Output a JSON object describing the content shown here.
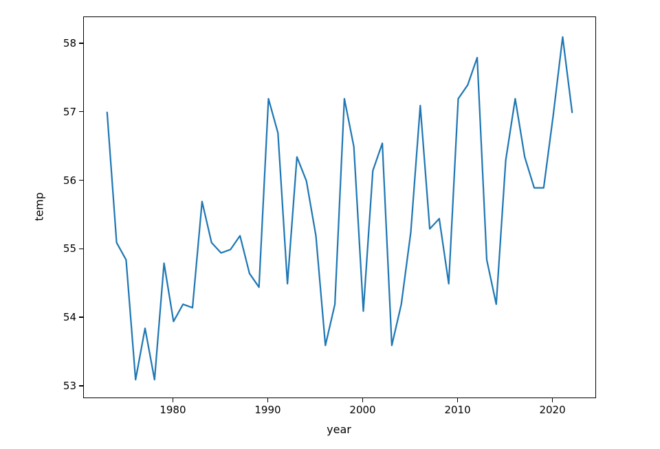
{
  "figure": {
    "background": "#ffffff",
    "spine_color": "#000000",
    "tick_color": "#000000"
  },
  "chart_data": {
    "type": "line",
    "title": "",
    "xlabel": "year",
    "ylabel": "temp",
    "grid": false,
    "legend": null,
    "line_color": "#1f77b4",
    "line_width": 2.25,
    "xlim": [
      1970.55,
      2024.45
    ],
    "ylim": [
      52.84,
      58.39
    ],
    "xticks": [
      1980,
      1990,
      2000,
      2010,
      2020
    ],
    "yticks": [
      53,
      54,
      55,
      56,
      57,
      58
    ],
    "x": [
      1973,
      1974,
      1975,
      1976,
      1977,
      1978,
      1979,
      1980,
      1981,
      1982,
      1983,
      1984,
      1985,
      1986,
      1987,
      1988,
      1989,
      1990,
      1991,
      1992,
      1993,
      1994,
      1995,
      1996,
      1997,
      1998,
      1999,
      2000,
      2001,
      2002,
      2003,
      2004,
      2005,
      2006,
      2007,
      2008,
      2009,
      2010,
      2011,
      2012,
      2013,
      2014,
      2015,
      2016,
      2017,
      2018,
      2019,
      2020,
      2021,
      2022
    ],
    "series": [
      {
        "name": "temp",
        "values": [
          57.0,
          55.1,
          54.85,
          53.1,
          53.85,
          53.1,
          54.8,
          53.95,
          54.2,
          54.15,
          55.7,
          55.1,
          54.95,
          55.0,
          55.2,
          54.65,
          54.45,
          57.2,
          56.7,
          54.5,
          56.35,
          56.0,
          55.2,
          53.6,
          54.2,
          57.2,
          56.5,
          54.1,
          56.15,
          56.55,
          53.6,
          54.2,
          55.25,
          57.1,
          55.3,
          55.45,
          54.5,
          57.2,
          57.4,
          57.8,
          54.85,
          54.2,
          56.3,
          57.2,
          56.35,
          55.9,
          55.9,
          56.95,
          58.1,
          57.0
        ]
      }
    ]
  }
}
